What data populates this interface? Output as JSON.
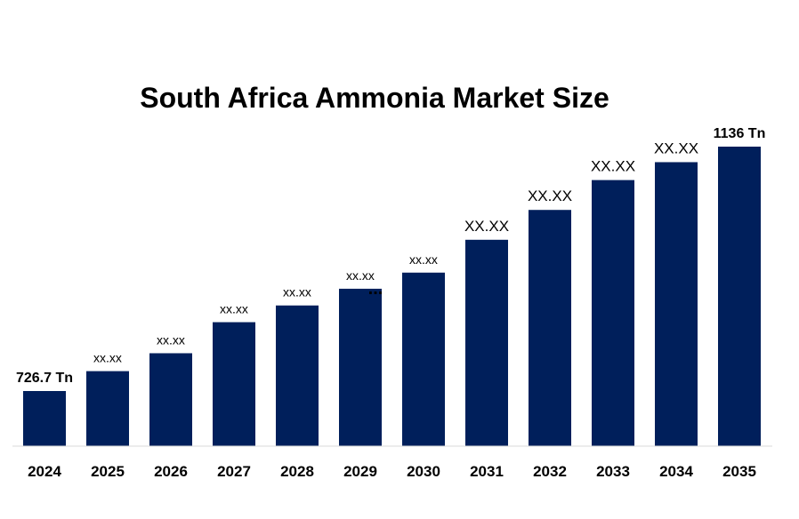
{
  "chart_data": {
    "type": "bar",
    "title": "South Africa Ammonia Market Size",
    "xlabel": "",
    "ylabel": "",
    "categories": [
      "2024",
      "2025",
      "2026",
      "2027",
      "2028",
      "2029",
      "2030",
      "2031",
      "2032",
      "2033",
      "2034",
      "2035"
    ],
    "values": [
      726.7,
      760,
      790,
      842,
      870,
      898,
      925,
      980,
      1030,
      1080,
      1110,
      1136
    ],
    "data_labels": [
      "726.7 Tn",
      "xx.xx",
      "xx.xx",
      "xx.xx",
      "xx.xx",
      "xx.xx",
      "xx.xx",
      "XX.XX",
      "XX.XX",
      "XX.XX",
      "XX.XX",
      "1136 Tn"
    ],
    "annotation": "...",
    "bar_color": "#001F5B",
    "grid": false,
    "legend": "none"
  }
}
